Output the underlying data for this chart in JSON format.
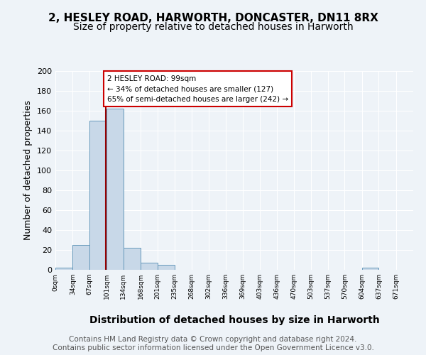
{
  "title": "2, HESLEY ROAD, HARWORTH, DONCASTER, DN11 8RX",
  "subtitle": "Size of property relative to detached houses in Harworth",
  "xlabel": "Distribution of detached houses by size in Harworth",
  "ylabel": "Number of detached properties",
  "bar_edges": [
    0,
    34,
    67,
    101,
    134,
    168,
    201,
    235,
    268,
    302,
    336,
    369,
    403,
    436,
    470,
    503,
    537,
    570,
    604,
    637,
    671,
    705
  ],
  "bar_heights": [
    2,
    25,
    150,
    162,
    22,
    7,
    5,
    0,
    0,
    0,
    0,
    0,
    0,
    0,
    0,
    0,
    0,
    0,
    2,
    0,
    0
  ],
  "bar_color": "#c8d8e8",
  "bar_edge_color": "#6699bb",
  "property_size": 99,
  "property_line_color": "#990000",
  "annotation_text": "2 HESLEY ROAD: 99sqm\n← 34% of detached houses are smaller (127)\n65% of semi-detached houses are larger (242) →",
  "annotation_box_color": "#ffffff",
  "annotation_box_edge": "#cc0000",
  "ylim": [
    0,
    200
  ],
  "yticks": [
    0,
    20,
    40,
    60,
    80,
    100,
    120,
    140,
    160,
    180,
    200
  ],
  "tick_labels": [
    "0sqm",
    "34sqm",
    "67sqm",
    "101sqm",
    "134sqm",
    "168sqm",
    "201sqm",
    "235sqm",
    "268sqm",
    "302sqm",
    "336sqm",
    "369sqm",
    "403sqm",
    "436sqm",
    "470sqm",
    "503sqm",
    "537sqm",
    "570sqm",
    "604sqm",
    "637sqm",
    "671sqm"
  ],
  "footer_text": "Contains HM Land Registry data © Crown copyright and database right 2024.\nContains public sector information licensed under the Open Government Licence v3.0.",
  "background_color": "#eef3f8",
  "plot_background": "#eef3f8",
  "grid_color": "#ffffff",
  "title_fontsize": 11,
  "subtitle_fontsize": 10,
  "xlabel_fontsize": 10,
  "ylabel_fontsize": 9,
  "footer_fontsize": 7.5
}
